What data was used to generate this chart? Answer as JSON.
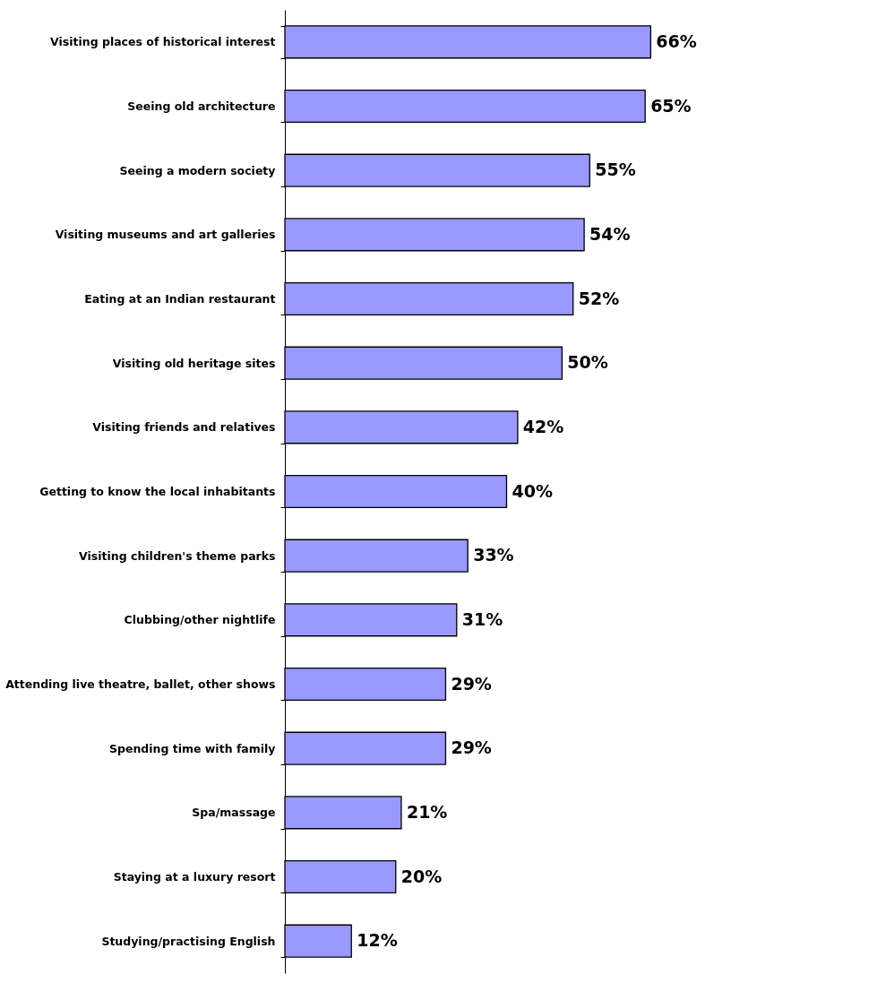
{
  "chart_data": {
    "type": "bar",
    "orientation": "horizontal",
    "categories": [
      "Visiting places of historical interest",
      "Seeing old architecture",
      "Seeing a modern society",
      "Visiting museums and art galleries",
      "Eating at an Indian restaurant",
      "Visiting old heritage sites",
      "Visiting friends and relatives",
      "Getting to know the local inhabitants",
      "Visiting children's theme parks",
      "Clubbing/other nightlife",
      "Attending live theatre, ballet, other shows",
      "Spending time with family",
      "Spa/massage",
      "Staying at a luxury resort",
      "Studying/practising English"
    ],
    "values": [
      66,
      65,
      55,
      54,
      52,
      50,
      42,
      40,
      33,
      31,
      29,
      29,
      21,
      20,
      12
    ],
    "value_labels": [
      "66%",
      "65%",
      "55%",
      "54%",
      "52%",
      "50%",
      "42%",
      "40%",
      "33%",
      "31%",
      "29%",
      "29%",
      "21%",
      "20%",
      "12%"
    ],
    "color": "#9999ff",
    "grid": false
  }
}
